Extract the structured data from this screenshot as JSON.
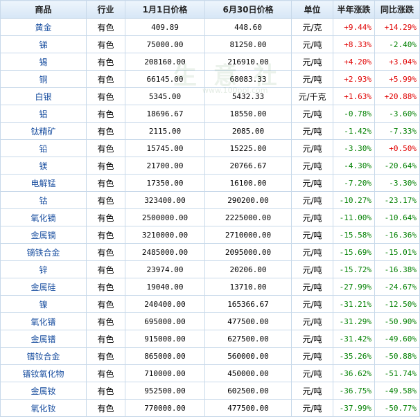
{
  "table": {
    "header": [
      "商品",
      "行业",
      "1月1日价格",
      "6月30日价格",
      "单位",
      "半年涨跌",
      "同比涨跌"
    ],
    "rows": [
      [
        "黄金",
        "有色",
        "409.89",
        "448.60",
        "元/克",
        "+9.44%",
        "+14.29%"
      ],
      [
        "锑",
        "有色",
        "75000.00",
        "81250.00",
        "元/吨",
        "+8.33%",
        "-2.40%"
      ],
      [
        "锡",
        "有色",
        "208160.00",
        "216910.00",
        "元/吨",
        "+4.20%",
        "+3.04%"
      ],
      [
        "铜",
        "有色",
        "66145.00",
        "68083.33",
        "元/吨",
        "+2.93%",
        "+5.99%"
      ],
      [
        "白银",
        "有色",
        "5345.00",
        "5432.33",
        "元/千克",
        "+1.63%",
        "+20.88%"
      ],
      [
        "铝",
        "有色",
        "18696.67",
        "18550.00",
        "元/吨",
        "-0.78%",
        "-3.60%"
      ],
      [
        "钛精矿",
        "有色",
        "2115.00",
        "2085.00",
        "元/吨",
        "-1.42%",
        "-7.33%"
      ],
      [
        "铅",
        "有色",
        "15745.00",
        "15225.00",
        "元/吨",
        "-3.30%",
        "+0.50%"
      ],
      [
        "镁",
        "有色",
        "21700.00",
        "20766.67",
        "元/吨",
        "-4.30%",
        "-20.64%"
      ],
      [
        "电解锰",
        "有色",
        "17350.00",
        "16100.00",
        "元/吨",
        "-7.20%",
        "-3.30%"
      ],
      [
        "钴",
        "有色",
        "323400.00",
        "290200.00",
        "元/吨",
        "-10.27%",
        "-23.17%"
      ],
      [
        "氧化镝",
        "有色",
        "2500000.00",
        "2225000.00",
        "元/吨",
        "-11.00%",
        "-10.64%"
      ],
      [
        "金属镝",
        "有色",
        "3210000.00",
        "2710000.00",
        "元/吨",
        "-15.58%",
        "-16.36%"
      ],
      [
        "镝铁合金",
        "有色",
        "2485000.00",
        "2095000.00",
        "元/吨",
        "-15.69%",
        "-15.01%"
      ],
      [
        "锌",
        "有色",
        "23974.00",
        "20206.00",
        "元/吨",
        "-15.72%",
        "-16.38%"
      ],
      [
        "金属硅",
        "有色",
        "19040.00",
        "13710.00",
        "元/吨",
        "-27.99%",
        "-24.67%"
      ],
      [
        "镍",
        "有色",
        "240400.00",
        "165366.67",
        "元/吨",
        "-31.21%",
        "-12.50%"
      ],
      [
        "氧化镨",
        "有色",
        "695000.00",
        "477500.00",
        "元/吨",
        "-31.29%",
        "-50.90%"
      ],
      [
        "金属镨",
        "有色",
        "915000.00",
        "627500.00",
        "元/吨",
        "-31.42%",
        "-49.60%"
      ],
      [
        "镨钕合金",
        "有色",
        "865000.00",
        "560000.00",
        "元/吨",
        "-35.26%",
        "-50.88%"
      ],
      [
        "镨钕氧化物",
        "有色",
        "710000.00",
        "450000.00",
        "元/吨",
        "-36.62%",
        "-51.74%"
      ],
      [
        "金属钕",
        "有色",
        "952500.00",
        "602500.00",
        "元/吨",
        "-36.75%",
        "-49.58%"
      ],
      [
        "氧化钕",
        "有色",
        "770000.00",
        "477500.00",
        "元/吨",
        "-37.99%",
        "-50.77%"
      ]
    ]
  },
  "watermark": {
    "brand": "生 意 社",
    "url": "www.100ppi.com"
  }
}
